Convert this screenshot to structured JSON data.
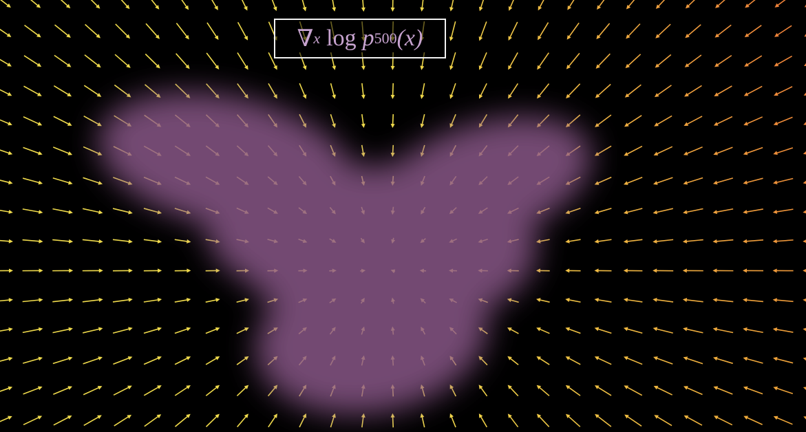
{
  "formula": [
    "∇",
    "x",
    "log",
    "p",
    "500",
    "(x)"
  ]
}
